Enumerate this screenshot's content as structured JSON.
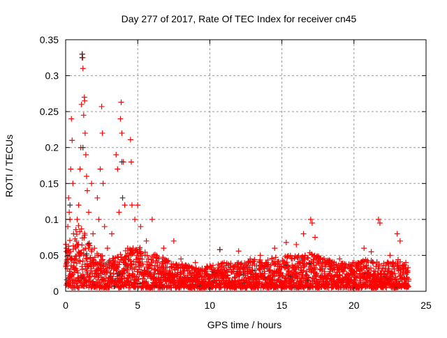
{
  "chart_data": {
    "type": "scatter",
    "title": "Day 277 of 2017, Rate Of TEC Index for receiver cn45",
    "xlabel": "GPS time / hours",
    "ylabel": "ROTI / TECUs",
    "xlim": [
      0,
      25
    ],
    "ylim": [
      0,
      0.35
    ],
    "xticks": [
      "0",
      "5",
      "10",
      "15",
      "20",
      "25"
    ],
    "xtick_values": [
      0,
      5,
      10,
      15,
      20,
      25
    ],
    "yticks": [
      "0",
      "0.05",
      "0.1",
      "0.15",
      "0.2",
      "0.25",
      "0.3",
      "0.35"
    ],
    "ytick_values": [
      0,
      0.05,
      0.1,
      0.15,
      0.2,
      0.25,
      0.3,
      0.35
    ],
    "grid": true,
    "marker": "+",
    "series": [
      {
        "name": "roti",
        "color": "#ff0000",
        "x": [
          0.05,
          0.1,
          0.15,
          0.2,
          0.25,
          0.3,
          0.35,
          0.4,
          0.45,
          0.5,
          0.55,
          0.7,
          0.8,
          0.9,
          1.0,
          1.05,
          1.1,
          1.15,
          1.18,
          1.2,
          1.25,
          1.3,
          1.32,
          1.35,
          1.4,
          1.45,
          1.5,
          1.6,
          1.8,
          1.9,
          2.0,
          2.2,
          2.3,
          2.4,
          2.5,
          2.55,
          2.6,
          2.7,
          2.9,
          3.2,
          3.4,
          3.5,
          3.6,
          3.7,
          3.8,
          3.85,
          3.9,
          4.0,
          4.1,
          4.3,
          4.5,
          4.55,
          4.6,
          4.8,
          5.0,
          5.2,
          5.6,
          6.0,
          6.3,
          6.8,
          7.5,
          8.0,
          9.0,
          10.0,
          10.7,
          11.0,
          12.0,
          12.8,
          13.5,
          14.5,
          15.3,
          16.0,
          16.5,
          17.0,
          17.1,
          17.3,
          18.0,
          19.0,
          20.0,
          20.7,
          21.2,
          21.7,
          21.8,
          22.5,
          23.0,
          23.2,
          23.6
        ],
        "y": [
          0.06,
          0.04,
          0.09,
          0.13,
          0.11,
          0.1,
          0.17,
          0.24,
          0.21,
          0.15,
          0.08,
          0.06,
          0.1,
          0.12,
          0.17,
          0.2,
          0.26,
          0.33,
          0.325,
          0.31,
          0.245,
          0.27,
          0.265,
          0.22,
          0.19,
          0.16,
          0.14,
          0.11,
          0.15,
          0.08,
          0.06,
          0.13,
          0.1,
          0.17,
          0.257,
          0.22,
          0.15,
          0.09,
          0.06,
          0.08,
          0.04,
          0.19,
          0.17,
          0.11,
          0.24,
          0.263,
          0.22,
          0.18,
          0.12,
          0.06,
          0.211,
          0.18,
          0.12,
          0.1,
          0.12,
          0.09,
          0.07,
          0.1,
          0.05,
          0.06,
          0.07,
          0.045,
          0.04,
          0.035,
          0.058,
          0.04,
          0.056,
          0.045,
          0.05,
          0.06,
          0.068,
          0.065,
          0.08,
          0.1,
          0.095,
          0.075,
          0.04,
          0.045,
          0.04,
          0.06,
          0.055,
          0.1,
          0.095,
          0.05,
          0.08,
          0.07,
          0.04
        ]
      }
    ],
    "baseline_envelope": {
      "x": [
        0,
        1,
        2,
        3,
        4,
        5,
        6,
        7,
        8,
        9,
        10,
        11,
        12,
        13,
        14,
        15,
        16,
        17,
        18,
        19,
        20,
        21,
        22,
        23,
        23.8
      ],
      "ymax": [
        0.06,
        0.09,
        0.05,
        0.04,
        0.05,
        0.06,
        0.05,
        0.04,
        0.035,
        0.03,
        0.03,
        0.035,
        0.035,
        0.04,
        0.04,
        0.045,
        0.045,
        0.05,
        0.04,
        0.035,
        0.035,
        0.04,
        0.035,
        0.04,
        0.03
      ]
    }
  }
}
